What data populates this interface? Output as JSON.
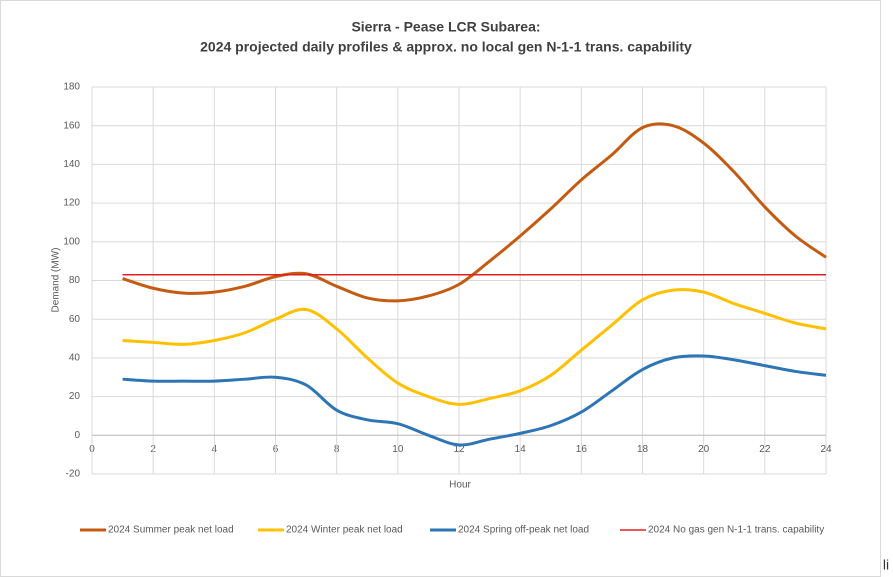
{
  "chart_data": {
    "type": "line",
    "title": [
      "Sierra - Pease LCR Subarea:",
      "2024 projected daily profiles & approx. no local gen N-1-1 trans. capability"
    ],
    "xlabel": "Hour",
    "ylabel": "Demand (MW)",
    "x": [
      1,
      2,
      3,
      4,
      5,
      6,
      7,
      8,
      9,
      10,
      11,
      12,
      13,
      14,
      15,
      16,
      17,
      18,
      19,
      20,
      21,
      22,
      23,
      24
    ],
    "series": [
      {
        "name": "2024 Summer peak net load",
        "color": "#c55a11",
        "values": [
          81,
          76,
          73.5,
          74,
          77,
          82,
          83.5,
          77,
          71,
          69.5,
          72,
          78,
          90,
          103,
          117,
          132,
          145,
          159,
          160,
          151,
          136,
          118,
          103,
          92
        ]
      },
      {
        "name": "2024 Winter peak net load",
        "color": "#ffc000",
        "values": [
          49,
          48,
          47,
          49,
          53,
          60,
          65,
          55,
          40,
          27,
          20,
          16,
          19,
          23,
          31,
          44,
          57,
          70,
          75,
          74,
          68,
          63,
          58,
          55
        ]
      },
      {
        "name": "2024 Spring off-peak net load",
        "color": "#2e75b6",
        "values": [
          29,
          28,
          28,
          28,
          29,
          30,
          26,
          13,
          8,
          6,
          0,
          -5,
          -2,
          1,
          5,
          12,
          23,
          34,
          40,
          41,
          39,
          36,
          33,
          31
        ]
      },
      {
        "name": "2024 No gas gen N-1-1 trans. capability",
        "color": "#e02020",
        "values": [
          83,
          83,
          83,
          83,
          83,
          83,
          83,
          83,
          83,
          83,
          83,
          83,
          83,
          83,
          83,
          83,
          83,
          83,
          83,
          83,
          83,
          83,
          83,
          83
        ]
      }
    ],
    "xlim": [
      0,
      24
    ],
    "xticks": [
      0,
      2,
      4,
      6,
      8,
      10,
      12,
      14,
      16,
      18,
      20,
      22,
      24
    ],
    "ylim": [
      -20,
      180
    ],
    "yticks": [
      -20,
      0,
      20,
      40,
      60,
      80,
      100,
      120,
      140,
      160,
      180
    ],
    "grid": true,
    "legend": "bottom",
    "corner_text": "li"
  }
}
